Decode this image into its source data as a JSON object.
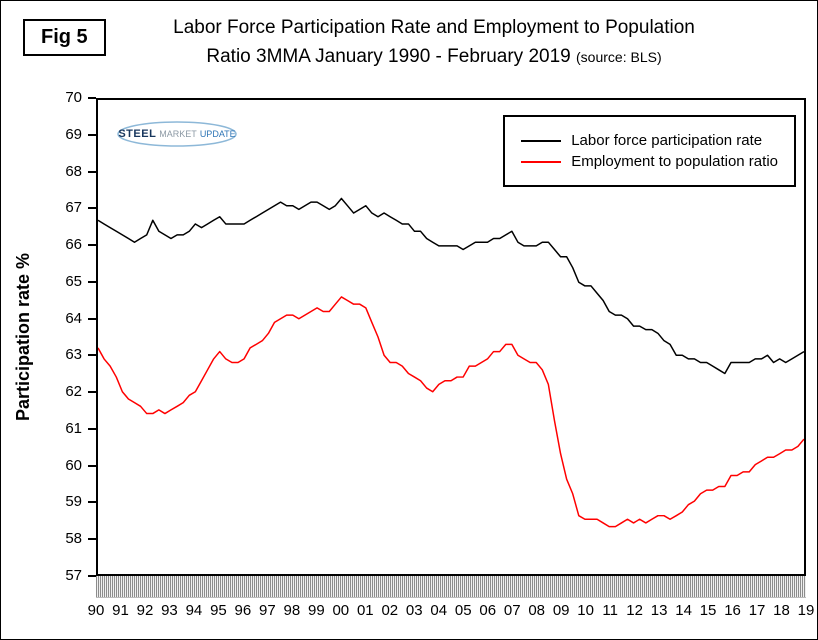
{
  "figure_label": "Fig 5",
  "title_line1": "Labor Force Participation Rate and Employment to Population",
  "title_line2": "Ratio 3MMA January 1990 - February 2019",
  "title_source": "(source: BLS)",
  "logo": {
    "steel": "STEEL",
    "market": "MARKET",
    "update": "UPDATE"
  },
  "chart_data": {
    "type": "line",
    "title": "Labor Force Participation Rate and Employment to Population Ratio 3MMA January 1990 - February 2019",
    "ylabel": "Participation rate %",
    "ylim": [
      57,
      70
    ],
    "yticks": [
      70,
      69,
      68,
      67,
      66,
      65,
      64,
      63,
      62,
      61,
      60,
      59,
      58,
      57
    ],
    "x_domain": [
      1990,
      2019
    ],
    "xtick_labels": [
      "90",
      "91",
      "92",
      "93",
      "94",
      "95",
      "96",
      "97",
      "98",
      "99",
      "00",
      "01",
      "02",
      "03",
      "04",
      "05",
      "06",
      "07",
      "08",
      "09",
      "10",
      "11",
      "12",
      "13",
      "14",
      "15",
      "16",
      "17",
      "18",
      "19"
    ],
    "grid": false,
    "legend_position": "top-right",
    "series": [
      {
        "name": "Labor force participation rate",
        "color": "#000000",
        "x_start": 1990,
        "x_step": 0.25,
        "values": [
          66.7,
          66.6,
          66.5,
          66.4,
          66.3,
          66.2,
          66.1,
          66.2,
          66.3,
          66.7,
          66.4,
          66.3,
          66.2,
          66.3,
          66.3,
          66.4,
          66.6,
          66.5,
          66.6,
          66.7,
          66.8,
          66.6,
          66.6,
          66.6,
          66.6,
          66.7,
          66.8,
          66.9,
          67.0,
          67.1,
          67.2,
          67.1,
          67.1,
          67.0,
          67.1,
          67.2,
          67.2,
          67.1,
          67.0,
          67.1,
          67.3,
          67.1,
          66.9,
          67.0,
          67.1,
          66.9,
          66.8,
          66.9,
          66.8,
          66.7,
          66.6,
          66.6,
          66.4,
          66.4,
          66.2,
          66.1,
          66.0,
          66.0,
          66.0,
          66.0,
          65.9,
          66.0,
          66.1,
          66.1,
          66.1,
          66.2,
          66.2,
          66.3,
          66.4,
          66.1,
          66.0,
          66.0,
          66.0,
          66.1,
          66.1,
          65.9,
          65.7,
          65.7,
          65.4,
          65.0,
          64.9,
          64.9,
          64.7,
          64.5,
          64.2,
          64.1,
          64.1,
          64.0,
          63.8,
          63.8,
          63.7,
          63.7,
          63.6,
          63.4,
          63.3,
          63.0,
          63.0,
          62.9,
          62.9,
          62.8,
          62.8,
          62.7,
          62.6,
          62.5,
          62.8,
          62.8,
          62.8,
          62.8,
          62.9,
          62.9,
          63.0,
          62.8,
          62.9,
          62.8,
          62.9,
          63.0,
          63.1
        ]
      },
      {
        "name": "Employment to population ratio",
        "color": "#ff0000",
        "x_start": 1990,
        "x_step": 0.25,
        "values": [
          63.2,
          62.9,
          62.7,
          62.4,
          62.0,
          61.8,
          61.7,
          61.6,
          61.4,
          61.4,
          61.5,
          61.4,
          61.5,
          61.6,
          61.7,
          61.9,
          62.0,
          62.3,
          62.6,
          62.9,
          63.1,
          62.9,
          62.8,
          62.8,
          62.9,
          63.2,
          63.3,
          63.4,
          63.6,
          63.9,
          64.0,
          64.1,
          64.1,
          64.0,
          64.1,
          64.2,
          64.3,
          64.2,
          64.2,
          64.4,
          64.6,
          64.5,
          64.4,
          64.4,
          64.3,
          63.9,
          63.5,
          63.0,
          62.8,
          62.8,
          62.7,
          62.5,
          62.4,
          62.3,
          62.1,
          62.0,
          62.2,
          62.3,
          62.3,
          62.4,
          62.4,
          62.7,
          62.7,
          62.8,
          62.9,
          63.1,
          63.1,
          63.3,
          63.3,
          63.0,
          62.9,
          62.8,
          62.8,
          62.6,
          62.2,
          61.2,
          60.3,
          59.6,
          59.2,
          58.6,
          58.5,
          58.5,
          58.5,
          58.4,
          58.3,
          58.3,
          58.4,
          58.5,
          58.4,
          58.5,
          58.4,
          58.5,
          58.6,
          58.6,
          58.5,
          58.6,
          58.7,
          58.9,
          59.0,
          59.2,
          59.3,
          59.3,
          59.4,
          59.4,
          59.7,
          59.7,
          59.8,
          59.8,
          60.0,
          60.1,
          60.2,
          60.2,
          60.3,
          60.4,
          60.4,
          60.5,
          60.7
        ]
      }
    ]
  }
}
